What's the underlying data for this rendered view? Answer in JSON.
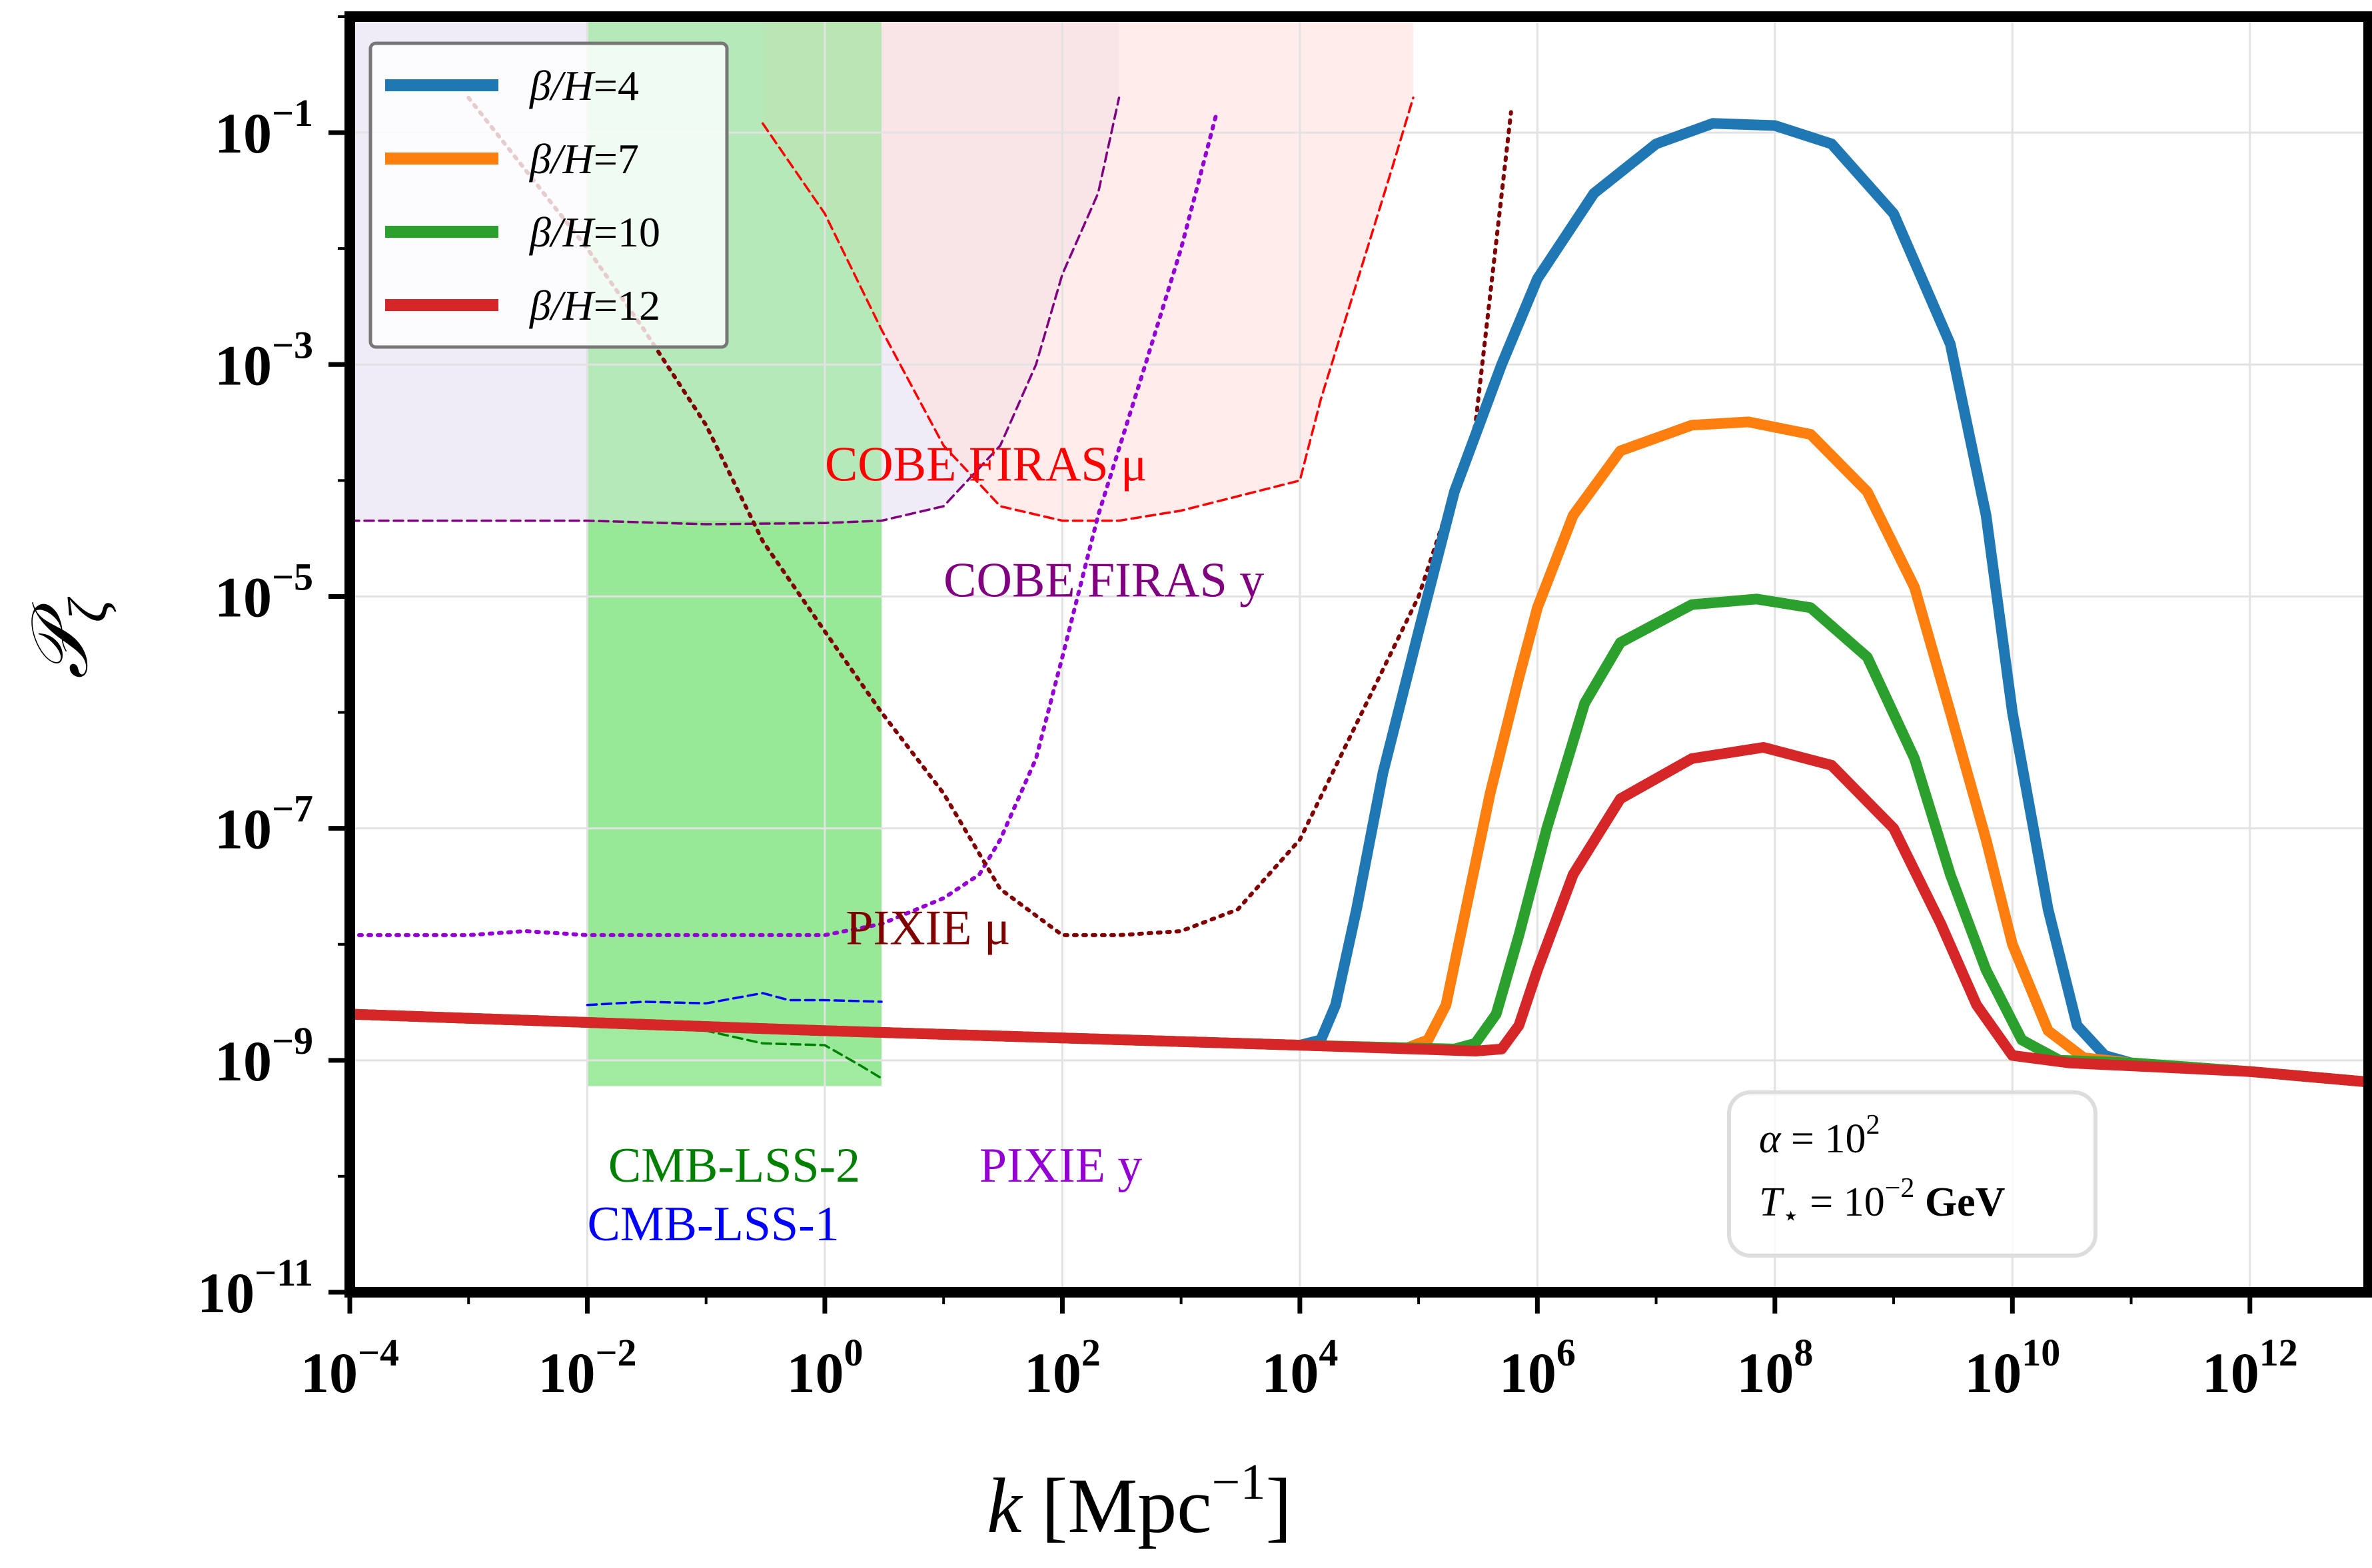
{
  "chart_data": {
    "type": "line",
    "xlabel": {
      "var": "k",
      "unit_open": " [Mpc",
      "unit_sup": "−1",
      "unit_close": "]"
    },
    "ylabel": {
      "script": "𝒫",
      "sub": "ζ"
    },
    "xscale": "log",
    "yscale": "log",
    "xlim": [
      0.0001,
      10000000000000.0
    ],
    "ylim": [
      1e-11,
      1
    ],
    "grid": true,
    "legend_position": "top-left",
    "x_ticks": [
      {
        "value": 0.0001,
        "base": "10",
        "exp": "−4"
      },
      {
        "value": 0.01,
        "base": "10",
        "exp": "−2"
      },
      {
        "value": 1,
        "base": "10",
        "exp": "0"
      },
      {
        "value": 100,
        "base": "10",
        "exp": "2"
      },
      {
        "value": 10000,
        "base": "10",
        "exp": "4"
      },
      {
        "value": 1000000,
        "base": "10",
        "exp": "6"
      },
      {
        "value": 100000000,
        "base": "10",
        "exp": "8"
      },
      {
        "value": 10000000000,
        "base": "10",
        "exp": "10"
      },
      {
        "value": 1000000000000,
        "base": "10",
        "exp": "12"
      }
    ],
    "y_ticks": [
      {
        "value": 0.1,
        "base": "10",
        "exp": "−1"
      },
      {
        "value": 0.001,
        "base": "10",
        "exp": "−3"
      },
      {
        "value": 1e-05,
        "base": "10",
        "exp": "−5"
      },
      {
        "value": 1e-07,
        "base": "10",
        "exp": "−7"
      },
      {
        "value": 1e-09,
        "base": "10",
        "exp": "−9"
      },
      {
        "value": 1e-11,
        "base": "10",
        "exp": "−11"
      }
    ],
    "series": [
      {
        "name": "β/H = 4",
        "legend": {
          "lhs": "β/H",
          "eq": "=",
          "rhs": "4"
        },
        "color": "#1f77b4",
        "points": [
          [
            0.0001,
            2.5e-09
          ],
          [
            1,
            1.8e-09
          ],
          [
            1000,
            1.45e-09
          ],
          [
            10000,
            1.35e-09
          ],
          [
            15000,
            1.5e-09
          ],
          [
            20000,
            3e-09
          ],
          [
            30000,
            2e-08
          ],
          [
            50000,
            3e-07
          ],
          [
            100000,
            5e-06
          ],
          [
            200000,
            8e-05
          ],
          [
            500000,
            0.001
          ],
          [
            1000000,
            0.0055
          ],
          [
            3000000,
            0.03
          ],
          [
            10000000,
            0.08
          ],
          [
            30000000,
            0.12
          ],
          [
            100000000,
            0.115
          ],
          [
            300000000,
            0.08
          ],
          [
            1000000000,
            0.02
          ],
          [
            3000000000,
            0.0015
          ],
          [
            6000000000,
            5e-05
          ],
          [
            10000000000,
            1e-06
          ],
          [
            20000000000,
            2e-08
          ],
          [
            35000000000,
            2e-09
          ],
          [
            60000000000,
            1.1e-09
          ],
          [
            100000000000,
            9.5e-10
          ],
          [
            1000000000000,
            8e-10
          ],
          [
            10000000000000,
            6.5e-10
          ]
        ]
      },
      {
        "name": "β/H = 7",
        "legend": {
          "lhs": "β/H",
          "eq": "=",
          "rhs": "7"
        },
        "color": "#ff7f0e",
        "points": [
          [
            0.0001,
            2.5e-09
          ],
          [
            1,
            1.8e-09
          ],
          [
            10000,
            1.35e-09
          ],
          [
            80000,
            1.28e-09
          ],
          [
            120000,
            1.5e-09
          ],
          [
            170000,
            3e-09
          ],
          [
            250000,
            2e-08
          ],
          [
            400000,
            2e-07
          ],
          [
            700000,
            2e-06
          ],
          [
            1000000,
            8e-06
          ],
          [
            2000000,
            5e-05
          ],
          [
            5000000,
            0.00018
          ],
          [
            20000000,
            0.0003
          ],
          [
            60000000,
            0.00032
          ],
          [
            200000000,
            0.00025
          ],
          [
            600000000,
            8e-05
          ],
          [
            1500000000,
            1.2e-05
          ],
          [
            3000000000,
            1e-06
          ],
          [
            6000000000,
            8e-08
          ],
          [
            10000000000,
            1e-08
          ],
          [
            20000000000,
            1.8e-09
          ],
          [
            40000000000,
            1.05e-09
          ],
          [
            100000000000,
            9.5e-10
          ],
          [
            1000000000000,
            8e-10
          ],
          [
            10000000000000,
            6.5e-10
          ]
        ]
      },
      {
        "name": "β/H = 10",
        "legend": {
          "lhs": "β/H",
          "eq": "=",
          "rhs": "10"
        },
        "color": "#2ca02c",
        "points": [
          [
            0.0001,
            2.5e-09
          ],
          [
            1,
            1.8e-09
          ],
          [
            10000,
            1.35e-09
          ],
          [
            200000,
            1.25e-09
          ],
          [
            300000,
            1.4e-09
          ],
          [
            450000,
            2.5e-09
          ],
          [
            700000,
            1.2e-08
          ],
          [
            1200000,
            1e-07
          ],
          [
            2500000,
            1.2e-06
          ],
          [
            5000000,
            4e-06
          ],
          [
            20000000,
            8.5e-06
          ],
          [
            70000000,
            9.5e-06
          ],
          [
            200000000,
            8e-06
          ],
          [
            600000000,
            3e-06
          ],
          [
            1500000000,
            4e-07
          ],
          [
            3000000000,
            4e-08
          ],
          [
            6000000000,
            6e-09
          ],
          [
            12000000000,
            1.5e-09
          ],
          [
            25000000000,
            1e-09
          ],
          [
            100000000000,
            9.5e-10
          ],
          [
            1000000000000,
            8e-10
          ],
          [
            10000000000000,
            6.5e-10
          ]
        ]
      },
      {
        "name": "β/H = 12",
        "legend": {
          "lhs": "β/H",
          "eq": "=",
          "rhs": "12"
        },
        "color": "#d62728",
        "points": [
          [
            0.0001,
            2.5e-09
          ],
          [
            1,
            1.8e-09
          ],
          [
            10000,
            1.35e-09
          ],
          [
            300000,
            1.2e-09
          ],
          [
            500000,
            1.25e-09
          ],
          [
            700000,
            2e-09
          ],
          [
            1000000,
            6e-09
          ],
          [
            2000000,
            4e-08
          ],
          [
            5000000,
            1.8e-07
          ],
          [
            20000000,
            4e-07
          ],
          [
            80000000,
            5e-07
          ],
          [
            300000000,
            3.5e-07
          ],
          [
            1000000000,
            1e-07
          ],
          [
            2500000000,
            1.5e-08
          ],
          [
            5000000000,
            3e-09
          ],
          [
            10000000000,
            1.1e-09
          ],
          [
            30000000000,
            9.5e-10
          ],
          [
            1000000000000,
            8e-10
          ],
          [
            10000000000000,
            6.5e-10
          ]
        ]
      }
    ],
    "constraints": [
      {
        "name": "COBE FIRAS y",
        "color": "#800080",
        "fill": "#e6e0f2",
        "style": "dashed",
        "points": [
          [
            0.0001,
            4.5e-05
          ],
          [
            0.01,
            4.5e-05
          ],
          [
            0.1,
            4.2e-05
          ],
          [
            1,
            4.3e-05
          ],
          [
            3,
            4.5e-05
          ],
          [
            10,
            6e-05
          ],
          [
            30,
            0.0002
          ],
          [
            60,
            0.001
          ],
          [
            100,
            0.006
          ],
          [
            200,
            0.03
          ],
          [
            300,
            0.2
          ]
        ]
      },
      {
        "name": "COBE FIRAS μ",
        "color": "#ff0000",
        "fill": "#ffe0dd",
        "style": "dashed",
        "points": [
          [
            0.3,
            0.12
          ],
          [
            1,
            0.02
          ],
          [
            3,
            0.002
          ],
          [
            10,
            0.0002
          ],
          [
            30,
            6e-05
          ],
          [
            100,
            4.5e-05
          ],
          [
            300,
            4.5e-05
          ],
          [
            1000,
            5.5e-05
          ],
          [
            10000,
            0.0001
          ],
          [
            15000,
            0.0005
          ],
          [
            30000,
            0.005
          ],
          [
            60000,
            0.05
          ],
          [
            90000,
            0.2
          ]
        ]
      },
      {
        "name": "CMB-LSS-2",
        "color": "#008000",
        "fill": "#90e890",
        "style": "dashed",
        "points": [
          [
            0.01,
            2e-09
          ],
          [
            0.1,
            1.8e-09
          ],
          [
            0.3,
            1.4e-09
          ],
          [
            1,
            1.35e-09
          ],
          [
            2,
            9e-10
          ],
          [
            3,
            7e-10
          ]
        ]
      },
      {
        "name": "CMB-LSS-1",
        "color": "#0000ff",
        "style": "dashed",
        "points": [
          [
            0.01,
            3e-09
          ],
          [
            0.03,
            3.2e-09
          ],
          [
            0.1,
            3.1e-09
          ],
          [
            0.3,
            3.8e-09
          ],
          [
            0.5,
            3.3e-09
          ],
          [
            1,
            3.3e-09
          ],
          [
            3,
            3.2e-09
          ]
        ]
      },
      {
        "name": "PIXIE y",
        "color": "#9400d3",
        "style": "dotted",
        "points": [
          [
            0.0001,
            1.2e-08
          ],
          [
            0.001,
            1.2e-08
          ],
          [
            0.003,
            1.3e-08
          ],
          [
            0.01,
            1.2e-08
          ],
          [
            0.1,
            1.2e-08
          ],
          [
            1,
            1.2e-08
          ],
          [
            3,
            1.5e-08
          ],
          [
            10,
            2.5e-08
          ],
          [
            20,
            4e-08
          ],
          [
            30,
            8e-08
          ],
          [
            60,
            4e-07
          ],
          [
            100,
            3e-06
          ],
          [
            200,
            5e-05
          ],
          [
            500,
            0.001
          ],
          [
            1000,
            0.01
          ],
          [
            2000,
            0.15
          ]
        ]
      },
      {
        "name": "PIXIE μ",
        "color": "#800000",
        "style": "dotted",
        "points": [
          [
            0.001,
            0.2
          ],
          [
            0.01,
            0.01
          ],
          [
            0.03,
            0.002
          ],
          [
            0.1,
            0.0003
          ],
          [
            0.3,
            3e-05
          ],
          [
            1,
            5e-06
          ],
          [
            3,
            1e-06
          ],
          [
            10,
            2e-07
          ],
          [
            30,
            3e-08
          ],
          [
            100,
            1.2e-08
          ],
          [
            300,
            1.2e-08
          ],
          [
            1000,
            1.3e-08
          ],
          [
            3000,
            2e-08
          ],
          [
            10000,
            8e-08
          ],
          [
            30000,
            8e-07
          ],
          [
            100000,
            1e-05
          ],
          [
            300000,
            0.0003
          ],
          [
            600000,
            0.15
          ]
        ]
      }
    ],
    "cmb_lss_band": {
      "x": [
        0.01,
        3
      ],
      "y": [
        4.5e-05,
        6e-10
      ],
      "color": "#90e890"
    },
    "region_labels": [
      {
        "text": "COBE FIRAS μ",
        "x": 1,
        "y": 0.0001,
        "color": "#ff0000"
      },
      {
        "text": "COBE FIRAS y",
        "x": 10,
        "y": 1e-05,
        "color": "#800080"
      },
      {
        "text": "PIXIE μ",
        "x": 1.5,
        "y": 1e-08,
        "color": "#800000"
      },
      {
        "text": "PIXIE y",
        "x": 20,
        "y": 9e-11,
        "color": "#9400d3"
      },
      {
        "text": "CMB-LSS-2",
        "x": 0.015,
        "y": 9e-11,
        "color": "#008000"
      },
      {
        "text": "CMB-LSS-1",
        "x": 0.01,
        "y": 2.8e-11,
        "color": "#0000ff"
      }
    ],
    "annotation": {
      "alpha": {
        "lhs": "α",
        "eq": " = 10",
        "sup": "2"
      },
      "temp": {
        "lhs": "T",
        "sub": "⋆",
        "eq": " = 10",
        "sup": "−2",
        "unit": " GeV"
      }
    }
  }
}
